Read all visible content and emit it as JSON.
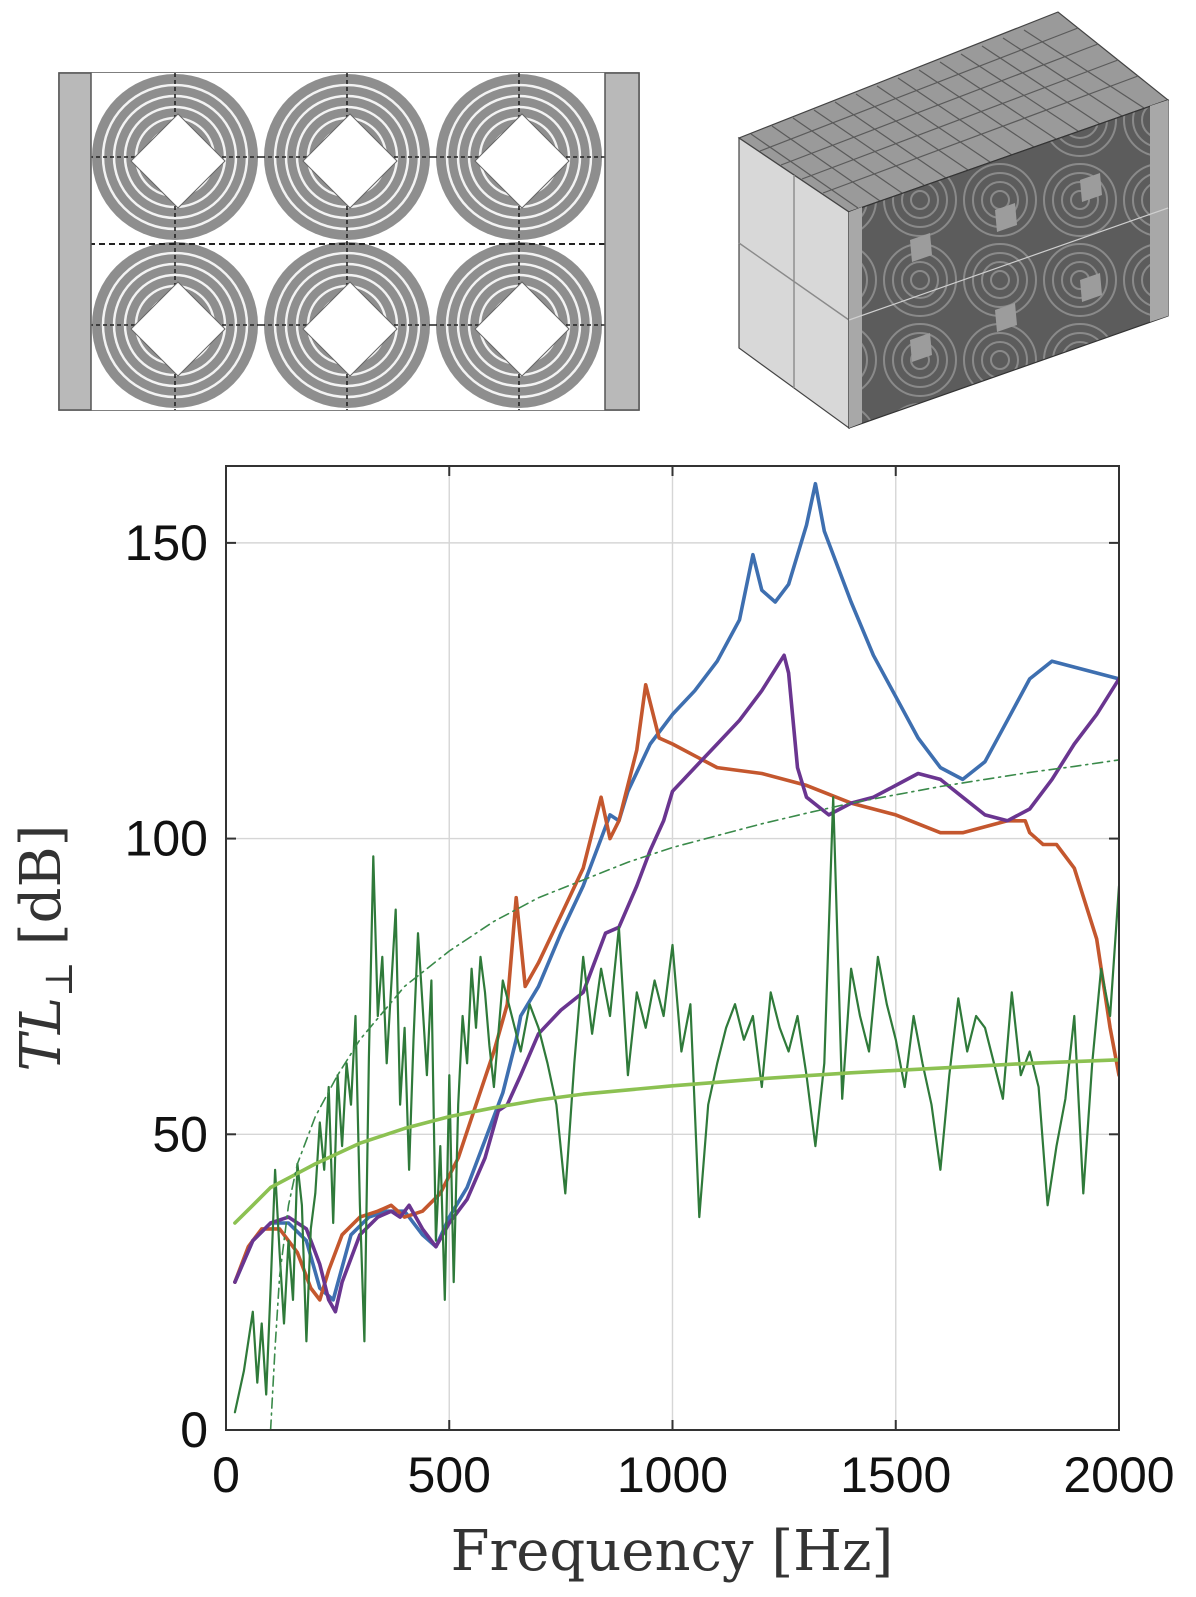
{
  "figure": {
    "top_left_image": "2D cross-section schematic of metamaterial unit cells (concentric ring resonators)",
    "top_right_image": "3D isometric view of metamaterial block"
  },
  "chart_data": {
    "type": "line",
    "title": "",
    "xlabel": "Frequency [Hz]",
    "ylabel_main": "TL",
    "ylabel_sub": "⊥",
    "ylabel_unit": "[dB]",
    "xlim": [
      0,
      2000
    ],
    "ylim": [
      0,
      163
    ],
    "xticks": [
      0,
      500,
      1000,
      1500,
      2000
    ],
    "yticks": [
      0,
      50,
      100,
      150
    ],
    "xtick_labels": [
      "0",
      "500",
      "1000",
      "1500",
      "2000"
    ],
    "ytick_labels": [
      "0",
      "50",
      "100",
      "150"
    ],
    "grid": true,
    "legend": false,
    "series": [
      {
        "color": "#3e6fb0",
        "style": "solid",
        "x": [
          20,
          60,
          100,
          140,
          180,
          210,
          240,
          280,
          320,
          360,
          400,
          440,
          470,
          500,
          540,
          580,
          620,
          650,
          660,
          700,
          750,
          800,
          840,
          860,
          880,
          900,
          950,
          1000,
          1050,
          1100,
          1150,
          1180,
          1200,
          1230,
          1260,
          1300,
          1320,
          1340,
          1400,
          1450,
          1500,
          1550,
          1600,
          1650,
          1700,
          1750,
          1800,
          1850,
          1900,
          1950,
          2000
        ],
        "y": [
          25,
          32,
          35,
          35,
          32,
          24,
          22,
          33,
          36,
          37,
          37,
          33,
          31,
          36,
          41,
          49,
          57,
          66,
          70,
          75,
          84,
          92,
          100,
          104,
          103,
          108,
          116,
          121,
          125,
          130,
          137,
          148,
          142,
          140,
          143,
          153,
          160,
          152,
          140,
          131,
          124,
          117,
          112,
          110,
          113,
          120,
          127,
          130,
          129,
          128,
          127
        ]
      },
      {
        "color": "#c4572e",
        "style": "solid",
        "x": [
          20,
          50,
          80,
          120,
          160,
          190,
          210,
          230,
          260,
          300,
          340,
          370,
          400,
          440,
          480,
          520,
          560,
          600,
          630,
          650,
          670,
          700,
          750,
          800,
          840,
          860,
          880,
          920,
          940,
          970,
          1000,
          1050,
          1100,
          1200,
          1300,
          1400,
          1500,
          1600,
          1650,
          1700,
          1750,
          1790,
          1800,
          1830,
          1860,
          1900,
          1950,
          1980,
          2000
        ],
        "y": [
          25,
          31,
          34,
          34,
          30,
          24,
          22,
          27,
          33,
          36,
          37,
          38,
          36,
          37,
          40,
          46,
          55,
          64,
          72,
          90,
          75,
          79,
          87,
          95,
          107,
          100,
          103,
          115,
          126,
          117,
          116,
          114,
          112,
          111,
          109,
          106,
          104,
          101,
          101,
          102,
          103,
          103,
          101,
          99,
          99,
          95,
          83,
          68,
          60
        ]
      },
      {
        "color": "#6a3590",
        "style": "solid",
        "x": [
          20,
          60,
          100,
          140,
          180,
          210,
          230,
          245,
          260,
          300,
          340,
          370,
          390,
          410,
          440,
          470,
          500,
          540,
          580,
          610,
          630,
          660,
          700,
          750,
          800,
          850,
          880,
          920,
          950,
          980,
          1000,
          1050,
          1100,
          1150,
          1200,
          1250,
          1260,
          1280,
          1300,
          1350,
          1400,
          1450,
          1500,
          1550,
          1600,
          1650,
          1700,
          1750,
          1800,
          1850,
          1900,
          1950,
          2000
        ],
        "y": [
          25,
          32,
          35,
          36,
          34,
          28,
          22,
          20,
          25,
          33,
          36,
          37,
          36,
          38,
          34,
          31,
          35,
          39,
          46,
          54,
          55,
          60,
          67,
          71,
          74,
          84,
          85,
          92,
          98,
          103,
          108,
          112,
          116,
          120,
          125,
          131,
          128,
          112,
          107,
          104,
          106,
          107,
          109,
          111,
          110,
          107,
          104,
          103,
          105,
          110,
          116,
          121,
          127
        ]
      },
      {
        "color": "#2f7a3a",
        "style": "solid",
        "x": [
          20,
          40,
          60,
          70,
          80,
          90,
          100,
          110,
          120,
          130,
          140,
          150,
          160,
          170,
          180,
          190,
          200,
          210,
          220,
          230,
          240,
          250,
          260,
          270,
          280,
          290,
          300,
          310,
          320,
          330,
          340,
          350,
          360,
          370,
          380,
          390,
          400,
          410,
          420,
          430,
          440,
          450,
          460,
          470,
          480,
          490,
          500,
          510,
          520,
          530,
          540,
          550,
          560,
          570,
          580,
          590,
          600,
          620,
          640,
          660,
          680,
          700,
          720,
          740,
          760,
          780,
          800,
          820,
          840,
          860,
          880,
          900,
          920,
          940,
          960,
          980,
          1000,
          1020,
          1040,
          1060,
          1080,
          1100,
          1120,
          1140,
          1160,
          1180,
          1200,
          1220,
          1240,
          1260,
          1280,
          1300,
          1320,
          1340,
          1360,
          1380,
          1400,
          1420,
          1440,
          1460,
          1480,
          1500,
          1520,
          1540,
          1560,
          1580,
          1600,
          1620,
          1640,
          1660,
          1680,
          1700,
          1720,
          1740,
          1760,
          1780,
          1800,
          1820,
          1840,
          1860,
          1880,
          1900,
          1920,
          1940,
          1960,
          1980,
          2000
        ],
        "y": [
          3,
          10,
          20,
          8,
          18,
          6,
          24,
          44,
          30,
          18,
          32,
          22,
          45,
          38,
          15,
          34,
          40,
          52,
          44,
          58,
          35,
          60,
          48,
          62,
          55,
          70,
          38,
          15,
          63,
          97,
          70,
          80,
          62,
          75,
          88,
          55,
          68,
          44,
          66,
          84,
          72,
          60,
          76,
          32,
          48,
          22,
          60,
          25,
          55,
          70,
          62,
          78,
          68,
          80,
          74,
          65,
          58,
          76,
          70,
          64,
          72,
          68,
          62,
          55,
          40,
          62,
          80,
          67,
          78,
          70,
          85,
          60,
          74,
          68,
          76,
          70,
          82,
          64,
          72,
          36,
          55,
          62,
          68,
          72,
          66,
          70,
          58,
          74,
          68,
          64,
          70,
          60,
          48,
          62,
          107,
          56,
          78,
          70,
          64,
          80,
          72,
          66,
          58,
          70,
          62,
          55,
          44,
          60,
          73,
          64,
          70,
          68,
          62,
          56,
          74,
          60,
          64,
          58,
          38,
          48,
          56,
          70,
          40,
          62,
          78,
          70,
          92
        ]
      },
      {
        "color": "#8cc152",
        "style": "solid",
        "x": [
          20,
          60,
          100,
          150,
          200,
          300,
          400,
          500,
          600,
          700,
          800,
          900,
          1000,
          1100,
          1200,
          1300,
          1400,
          1500,
          1600,
          1700,
          1800,
          1900,
          2000
        ],
        "y": [
          35,
          38,
          41,
          43,
          45,
          48.5,
          51,
          53,
          54.5,
          55.8,
          56.8,
          57.5,
          58.2,
          58.8,
          59.4,
          59.9,
          60.4,
          60.8,
          61.2,
          61.6,
          62,
          62.3,
          62.6
        ]
      },
      {
        "color": "#3a8a4a",
        "style": "dashdot",
        "x": [
          100,
          110,
          120,
          140,
          160,
          200,
          250,
          300,
          400,
          500,
          600,
          700,
          800,
          900,
          1000,
          1100,
          1200,
          1300,
          1400,
          1500,
          1600,
          1700,
          1800,
          1900,
          2000
        ],
        "y": [
          0,
          14,
          26,
          38,
          45,
          53,
          60,
          66,
          75,
          81,
          86,
          90,
          93,
          96,
          98.5,
          100.5,
          102.5,
          104.3,
          106,
          107.4,
          108.8,
          110,
          111.2,
          112.2,
          113.3
        ]
      }
    ]
  }
}
